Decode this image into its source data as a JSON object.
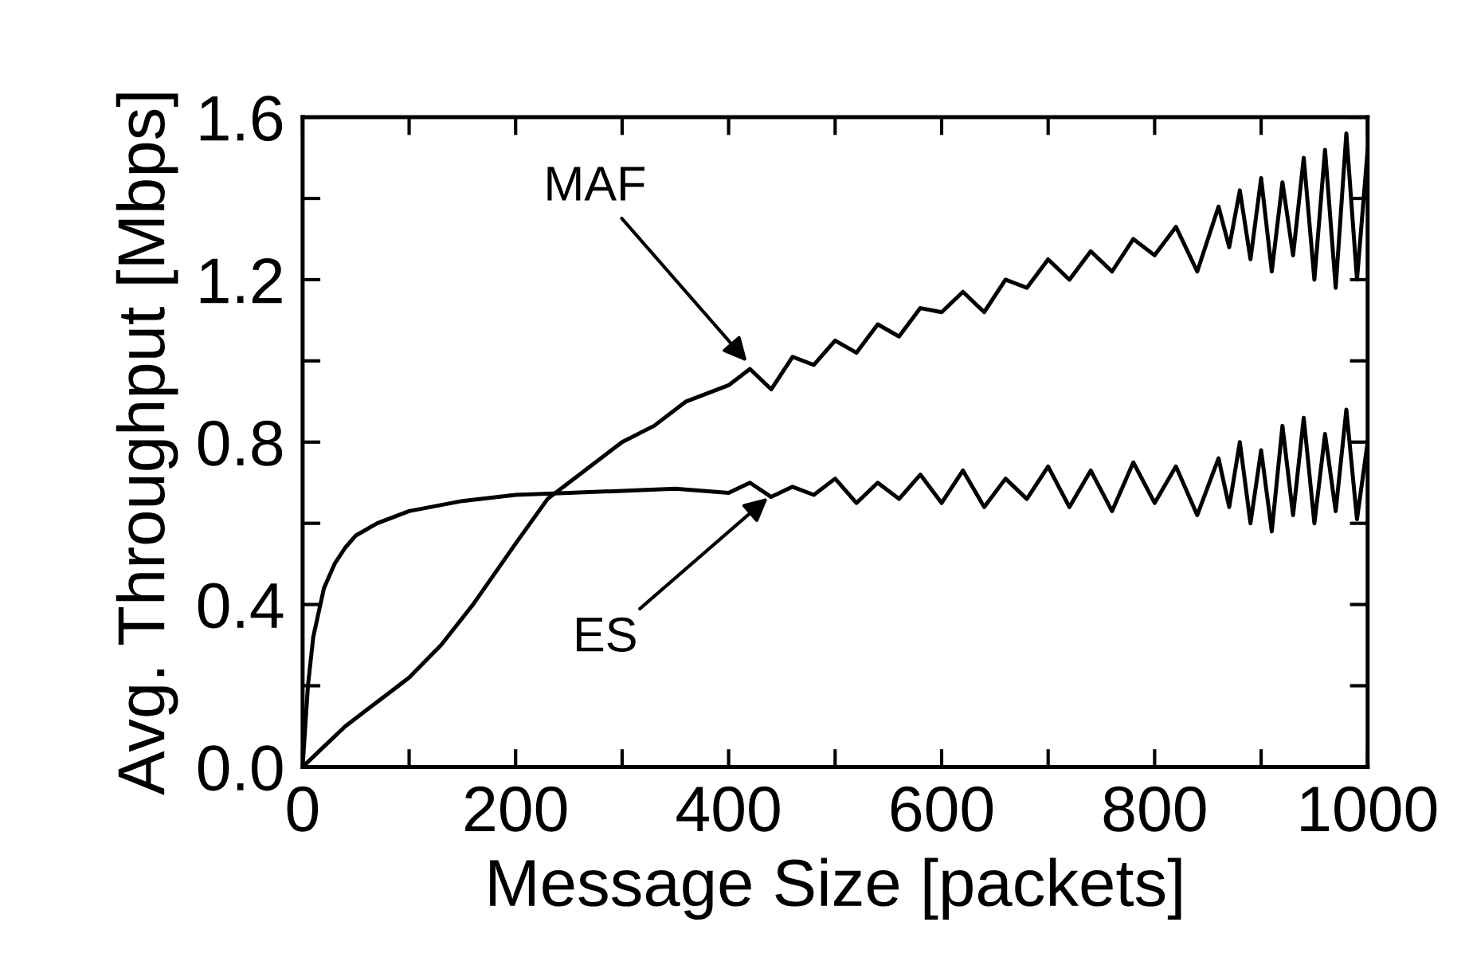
{
  "chart_data": {
    "type": "line",
    "xlabel": "Message Size [packets]",
    "ylabel": "Avg. Throughput [Mbps]",
    "xlim": [
      0,
      1000
    ],
    "ylim": [
      0,
      1.6
    ],
    "xticks": [
      0,
      {
        "value": 100,
        "label": null
      },
      200,
      {
        "value": 300,
        "label": null
      },
      400,
      {
        "value": 500,
        "label": null
      },
      600,
      {
        "value": 700,
        "label": null
      },
      800,
      {
        "value": 900,
        "label": null
      },
      1000
    ],
    "yticks": [
      {
        "value": 0,
        "label": "0.0"
      },
      {
        "value": 0.2,
        "label": null
      },
      {
        "value": 0.4,
        "label": "0.4"
      },
      {
        "value": 0.6,
        "label": null
      },
      {
        "value": 0.8,
        "label": "0.8"
      },
      {
        "value": 1.0,
        "label": null
      },
      {
        "value": 1.2,
        "label": "1.2"
      },
      {
        "value": 1.4,
        "label": null
      },
      {
        "value": 1.6,
        "label": "1.6"
      }
    ],
    "grid": false,
    "legend": false,
    "marker": "none",
    "line_style": "solid",
    "series": [
      {
        "color": "#000000",
        "x": [
          0,
          20,
          40,
          60,
          80,
          100,
          130,
          160,
          200,
          230,
          260,
          300,
          330,
          360,
          400,
          420,
          440,
          460,
          480,
          500,
          520,
          540,
          560,
          580,
          600,
          620,
          640,
          660,
          680,
          700,
          720,
          740,
          760,
          780,
          800,
          820,
          840,
          860,
          870,
          880,
          890,
          900,
          910,
          920,
          930,
          940,
          950,
          960,
          970,
          980,
          990,
          1000
        ],
        "values": [
          0,
          0.05,
          0.1,
          0.14,
          0.18,
          0.22,
          0.3,
          0.4,
          0.55,
          0.66,
          0.72,
          0.8,
          0.84,
          0.9,
          0.94,
          0.98,
          0.93,
          1.01,
          0.99,
          1.05,
          1.02,
          1.09,
          1.06,
          1.13,
          1.12,
          1.17,
          1.12,
          1.2,
          1.18,
          1.25,
          1.2,
          1.27,
          1.22,
          1.3,
          1.26,
          1.33,
          1.22,
          1.38,
          1.28,
          1.42,
          1.25,
          1.45,
          1.22,
          1.44,
          1.26,
          1.5,
          1.2,
          1.52,
          1.18,
          1.56,
          1.2,
          1.52
        ]
      },
      {
        "color": "#000000",
        "x": [
          0,
          5,
          10,
          20,
          30,
          40,
          50,
          70,
          100,
          150,
          200,
          250,
          300,
          350,
          400,
          420,
          440,
          460,
          480,
          500,
          520,
          540,
          560,
          580,
          600,
          620,
          640,
          660,
          680,
          700,
          720,
          740,
          760,
          780,
          800,
          820,
          840,
          860,
          870,
          880,
          890,
          900,
          910,
          920,
          930,
          940,
          950,
          960,
          970,
          980,
          990,
          1000
        ],
        "values": [
          0,
          0.2,
          0.32,
          0.44,
          0.5,
          0.54,
          0.57,
          0.6,
          0.63,
          0.655,
          0.67,
          0.675,
          0.68,
          0.685,
          0.675,
          0.7,
          0.665,
          0.69,
          0.67,
          0.71,
          0.65,
          0.7,
          0.66,
          0.72,
          0.65,
          0.73,
          0.64,
          0.71,
          0.66,
          0.74,
          0.64,
          0.73,
          0.63,
          0.75,
          0.65,
          0.74,
          0.62,
          0.76,
          0.64,
          0.8,
          0.6,
          0.78,
          0.58,
          0.84,
          0.62,
          0.86,
          0.6,
          0.82,
          0.63,
          0.88,
          0.61,
          0.8
        ]
      }
    ],
    "annotations": [
      {
        "text": "MAF",
        "x": 420,
        "y": 0.99
      },
      {
        "text": "ES",
        "x": 440,
        "y": 0.67
      }
    ]
  }
}
